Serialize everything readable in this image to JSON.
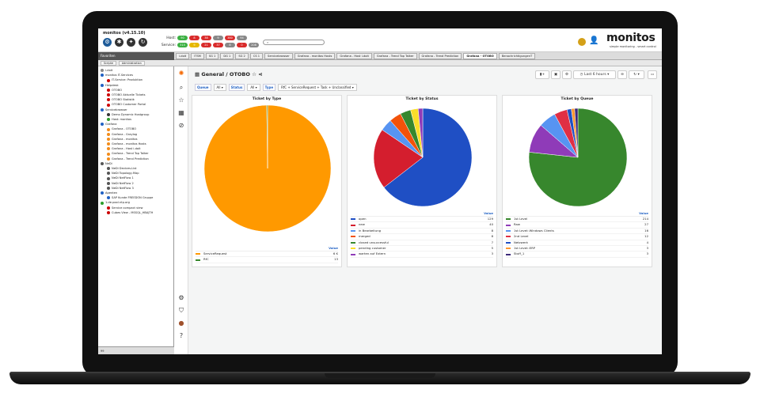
{
  "header": {
    "app_title": "monitos (v4.15.10)",
    "host_label": "Host:",
    "service_label": "Service:",
    "host_counts": [
      "90",
      "8",
      "38",
      "9",
      "380",
      "94"
    ],
    "service_counts": [
      "315",
      "9",
      "21",
      "37",
      "8",
      "0",
      "208"
    ],
    "search_placeholder": "",
    "logo": "monitos",
    "logo_sub": "simple monitoring - smart control"
  },
  "tabs": {
    "left_header": "Favoriten",
    "items": [
      "i-doit",
      "ITSM",
      "SG 1",
      "DG 1",
      "SG 2",
      "CS 1",
      "Servicebrowser",
      "Grafana - monitos Hosts",
      "Grafana - Host i-doit",
      "Grafana - Trend Top Talker",
      "Grafana - Trend Prediction",
      "Grafana - OTOBO",
      "BenachrichtigungenT"
    ],
    "active_index": 11,
    "sub_items": [
      "Scripte",
      "Administration"
    ]
  },
  "tree": {
    "nodes": [
      {
        "label": "i-doit",
        "level": 0,
        "color": "#888"
      },
      {
        "label": "monitos IT-Services",
        "level": 0,
        "color": "#1f60c4"
      },
      {
        "label": "IT-Service: Produktion",
        "level": 1,
        "color": "#c00"
      },
      {
        "label": "Helpdesk",
        "level": 0,
        "color": "#1f60c4"
      },
      {
        "label": "OTOBO",
        "level": 1,
        "color": "#c00"
      },
      {
        "label": "OTOBO Aktuelle Tickets",
        "level": 1,
        "color": "#c00"
      },
      {
        "label": "OTOBO Statistik",
        "level": 1,
        "color": "#c00"
      },
      {
        "label": "OTOBO Customer Portal",
        "level": 1,
        "color": "#c00"
      },
      {
        "label": "Servicebrowser",
        "level": 0,
        "color": "#1f60c4"
      },
      {
        "label": "Demo Dynamic Hostgroup",
        "level": 1,
        "color": "#333"
      },
      {
        "label": "Host: monitos",
        "level": 1,
        "color": "#2a9d2a"
      },
      {
        "label": "Grafana",
        "level": 0,
        "color": "#1f60c4"
      },
      {
        "label": "Grafana - OTOBO",
        "level": 1,
        "color": "#f28c1a"
      },
      {
        "label": "Grafana - Graylog",
        "level": 1,
        "color": "#f28c1a"
      },
      {
        "label": "Grafana - monitos",
        "level": 1,
        "color": "#f28c1a"
      },
      {
        "label": "Grafana - monitos Hosts",
        "level": 1,
        "color": "#f28c1a"
      },
      {
        "label": "Grafana - Host i-doit",
        "level": 1,
        "color": "#f28c1a"
      },
      {
        "label": "Grafana - Trend Top Talker",
        "level": 1,
        "color": "#f28c1a"
      },
      {
        "label": "Grafana - Trend Prediction",
        "level": 1,
        "color": "#f28c1a"
      },
      {
        "label": "NeDi",
        "level": 0,
        "color": "#555"
      },
      {
        "label": "NeDi Devices-List",
        "level": 1,
        "color": "#555"
      },
      {
        "label": "NeDi Topology-Map",
        "level": 1,
        "color": "#555"
      },
      {
        "label": "NeDi NetFlow 1",
        "level": 1,
        "color": "#555"
      },
      {
        "label": "NeDi NetFlow 2",
        "level": 1,
        "color": "#555"
      },
      {
        "label": "NeDi NetFlow 3",
        "level": 1,
        "color": "#555"
      },
      {
        "label": "Apenten",
        "level": 0,
        "color": "#1f60c4"
      },
      {
        "label": "SAP Kunde FREEDON Gruppe",
        "level": 1,
        "color": "#1f60c4"
      },
      {
        "label": "1.de.pool.ntp.org",
        "level": 0,
        "color": "#2a9d2a"
      },
      {
        "label": "Service compact view",
        "level": 1,
        "color": "#c00"
      },
      {
        "label": "Cubes View - MSSQL_HBAJTH",
        "level": 1,
        "color": "#c00"
      }
    ],
    "footer": "99"
  },
  "dashboard": {
    "title": "General / OTOBO",
    "time_range": "Last 6 hours",
    "vars": [
      {
        "label": "Queue",
        "value": "All"
      },
      {
        "label": "Status",
        "value": "All"
      },
      {
        "label": "Type",
        "value": "RfC + ServiceRequest + Task + Unclassified"
      }
    ]
  },
  "panels": [
    {
      "title": "Ticket by Type",
      "value_header": "Value",
      "slices": [
        {
          "name": "ServiceRequest",
          "value": "6 K",
          "num": 6000,
          "color": "#ff9900"
        },
        {
          "name": "RfC",
          "value": "13",
          "num": 13,
          "color": "#37872d"
        }
      ]
    },
    {
      "title": "Ticket by Status",
      "value_header": "Value",
      "slices": [
        {
          "name": "open",
          "value": "129",
          "num": 129,
          "color": "#1f4fc4"
        },
        {
          "name": "new",
          "value": "40",
          "num": 40,
          "color": "#d41e2e"
        },
        {
          "name": "in Bearbeitung",
          "value": "8",
          "num": 8,
          "color": "#5794f2"
        },
        {
          "name": "merged",
          "value": "8",
          "num": 8,
          "color": "#f2520a"
        },
        {
          "name": "closed unsuccessful",
          "value": "7",
          "num": 7,
          "color": "#37872d"
        },
        {
          "name": "pending customer",
          "value": "5",
          "num": 5,
          "color": "#fade2a"
        },
        {
          "name": "warten auf Extern",
          "value": "3",
          "num": 3,
          "color": "#8f3bb8"
        }
      ]
    },
    {
      "title": "Ticket by Queue",
      "value_header": "Value",
      "slices": [
        {
          "name": "1st Level",
          "value": "214",
          "num": 214,
          "color": "#37872d"
        },
        {
          "name": "Raw",
          "value": "27",
          "num": 27,
          "color": "#8f3bb8"
        },
        {
          "name": "1st Level::Windows Clients",
          "value": "16",
          "num": 16,
          "color": "#5794f2"
        },
        {
          "name": "2nd Level",
          "value": "12",
          "num": 12,
          "color": "#e02f44"
        },
        {
          "name": "Netzwerk",
          "value": "4",
          "num": 4,
          "color": "#1f4fc4"
        },
        {
          "name": "1st Level::ERP",
          "value": "3",
          "num": 3,
          "color": "#ff9830"
        },
        {
          "name": "Stuff_1",
          "value": "3",
          "num": 3,
          "color": "#3d2a7a"
        }
      ]
    }
  ],
  "colors": {
    "brand_blue": "#1f60c4",
    "host_pills": [
      "#3cb043",
      "#d92b2b",
      "#d92b2b",
      "#888888",
      "#d92b2b",
      "#888888"
    ],
    "service_pills": [
      "#3cb043",
      "#e6b800",
      "#d92b2b",
      "#d92b2b",
      "#888888",
      "#d92b2b",
      "#888888"
    ]
  }
}
